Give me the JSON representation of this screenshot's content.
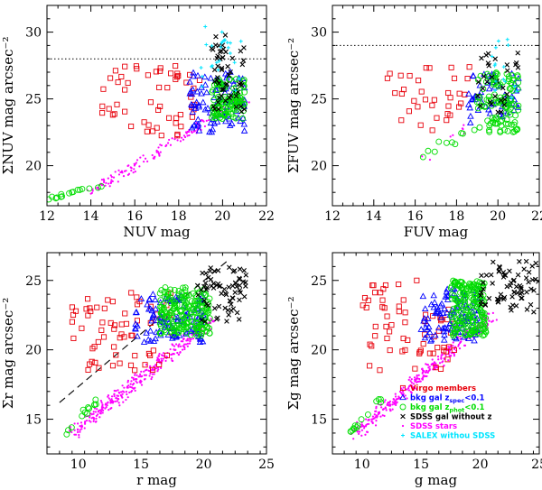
{
  "chart_data": [
    {
      "id": "nuv",
      "type": "scatter",
      "xlabel": "NUV mag",
      "ylabel": "ΣNUV mag arcsec⁻²",
      "xlim": [
        12,
        22
      ],
      "ylim": [
        17,
        32
      ],
      "xticks": [
        12,
        14,
        16,
        18,
        20,
        22
      ],
      "yticks": [
        20,
        25,
        30
      ],
      "hline": 28,
      "clusters": [
        {
          "series": "Virgo members",
          "x": [
            14.5,
            19.0
          ],
          "y": [
            22.0,
            27.5
          ],
          "n": 55
        },
        {
          "series": "bkg gal zspec<0.1",
          "x": [
            18.5,
            21.0
          ],
          "y": [
            22.5,
            27.0
          ],
          "n": 90
        },
        {
          "series": "bkg gal zphot<0.1",
          "x": [
            19.5,
            21.0
          ],
          "y": [
            23.5,
            26.5
          ],
          "n": 110
        },
        {
          "series": "SDSS gal without z",
          "x": [
            19.5,
            21.0
          ],
          "y": [
            24.0,
            30.0
          ],
          "n": 55
        },
        {
          "series": "SALEX withou SDSS",
          "x": [
            19.0,
            21.0
          ],
          "y": [
            25.5,
            31.0
          ],
          "n": 25
        }
      ],
      "lines": [
        {
          "series": "SDSS stars",
          "from": [
            14.0,
            18.0
          ],
          "to": [
            21.0,
            25.0
          ],
          "spread": 0.5,
          "n": 160
        },
        {
          "series": "bkg gal zphot<0.1",
          "from": [
            12.0,
            17.5
          ],
          "to": [
            14.5,
            18.6
          ],
          "spread": 0.3,
          "n": 16
        }
      ]
    },
    {
      "id": "fuv",
      "type": "scatter",
      "xlabel": "FUV mag",
      "ylabel": "ΣFUV mag arcsec⁻²",
      "xlim": [
        12,
        22
      ],
      "ylim": [
        17,
        32
      ],
      "xticks": [
        12,
        14,
        16,
        18,
        20,
        22
      ],
      "yticks": [
        20,
        25,
        30
      ],
      "hline": 29,
      "clusters": [
        {
          "series": "Virgo members",
          "x": [
            14.5,
            19.0
          ],
          "y": [
            22.5,
            27.5
          ],
          "n": 35
        },
        {
          "series": "bkg gal zspec<0.1",
          "x": [
            18.5,
            21.0
          ],
          "y": [
            23.0,
            27.0
          ],
          "n": 55
        },
        {
          "series": "bkg gal zphot<0.1",
          "x": [
            19.0,
            21.0
          ],
          "y": [
            22.5,
            27.0
          ],
          "n": 110
        },
        {
          "series": "SDSS gal without z",
          "x": [
            19.0,
            21.0
          ],
          "y": [
            24.0,
            28.5
          ],
          "n": 30
        },
        {
          "series": "SALEX withou SDSS",
          "x": [
            19.5,
            21.0
          ],
          "y": [
            25.0,
            30.0
          ],
          "n": 15
        }
      ],
      "lines": [
        {
          "series": "bkg gal zphot<0.1",
          "from": [
            16.0,
            20.5
          ],
          "to": [
            19.0,
            23.0
          ],
          "spread": 0.6,
          "n": 10
        },
        {
          "series": "SDSS stars",
          "from": [
            16.5,
            20.5
          ],
          "to": [
            18.5,
            23.0
          ],
          "spread": 0.6,
          "n": 8
        }
      ]
    },
    {
      "id": "r",
      "type": "scatter",
      "xlabel": "r mag",
      "ylabel": "Σr mag arcsec⁻²",
      "xlim": [
        7.5,
        25
      ],
      "ylim": [
        12.5,
        27
      ],
      "xticks": [
        10,
        15,
        20,
        25
      ],
      "yticks": [
        15,
        20,
        25
      ],
      "dashed": {
        "from": [
          8.5,
          16.2
        ],
        "to": [
          22.0,
          26.5
        ]
      },
      "clusters": [
        {
          "series": "Virgo members",
          "x": [
            9.5,
            17.5
          ],
          "y": [
            18.5,
            24.2
          ],
          "n": 65
        },
        {
          "series": "bkg gal zspec<0.1",
          "x": [
            14.5,
            20.0
          ],
          "y": [
            20.5,
            24.0
          ],
          "n": 110
        },
        {
          "series": "bkg gal zphot<0.1",
          "x": [
            16.5,
            20.5
          ],
          "y": [
            21.0,
            24.5
          ],
          "n": 190
        },
        {
          "series": "SDSS gal without z",
          "x": [
            19.5,
            23.5
          ],
          "y": [
            22.0,
            26.0
          ],
          "n": 70
        }
      ],
      "lines": [
        {
          "series": "SDSS stars",
          "from": [
            9.5,
            14.0
          ],
          "to": [
            20.5,
            22.0
          ],
          "spread": 0.9,
          "n": 330
        },
        {
          "series": "bkg gal zphot<0.1",
          "from": [
            9.0,
            14.0
          ],
          "to": [
            11.5,
            16.5
          ],
          "spread": 0.4,
          "n": 14
        }
      ]
    },
    {
      "id": "g",
      "type": "scatter",
      "xlabel": "g mag",
      "ylabel": "Σg mag arcsec⁻²",
      "xlim": [
        7.5,
        25
      ],
      "ylim": [
        12.5,
        27
      ],
      "xticks": [
        10,
        15,
        20,
        25
      ],
      "yticks": [
        15,
        20,
        25
      ],
      "clusters": [
        {
          "series": "Virgo members",
          "x": [
            10.0,
            18.0
          ],
          "y": [
            18.5,
            25.0
          ],
          "n": 65
        },
        {
          "series": "bkg gal zspec<0.1",
          "x": [
            15.0,
            20.0
          ],
          "y": [
            20.5,
            24.5
          ],
          "n": 110
        },
        {
          "series": "bkg gal zphot<0.1",
          "x": [
            17.5,
            20.5
          ],
          "y": [
            21.0,
            25.0
          ],
          "n": 190
        },
        {
          "series": "SDSS gal without z",
          "x": [
            20.0,
            25.0
          ],
          "y": [
            22.5,
            26.5
          ],
          "n": 70
        }
      ],
      "lines": [
        {
          "series": "SDSS stars",
          "from": [
            9.5,
            14.0
          ],
          "to": [
            21.0,
            22.5
          ],
          "spread": 0.9,
          "n": 330
        },
        {
          "series": "bkg gal zphot<0.1",
          "from": [
            9.0,
            14.0
          ],
          "to": [
            11.5,
            16.5
          ],
          "spread": 0.4,
          "n": 14
        }
      ]
    }
  ],
  "legend": {
    "panel": "g",
    "placement": "bottom-right",
    "entries": [
      {
        "series": "Virgo members",
        "symbol": "square",
        "color": "#e8000b",
        "text": "Virgo members",
        "sub": "",
        "tail": ""
      },
      {
        "series": "bkg gal zspec<0.1",
        "symbol": "triangle",
        "color": "#0000ff",
        "text": "bkg gal z",
        "sub": "spec",
        "tail": "<0.1"
      },
      {
        "series": "bkg gal zphot<0.1",
        "symbol": "circle",
        "color": "#00dd00",
        "text": "bkg gal z",
        "sub": "phot",
        "tail": "<0.1"
      },
      {
        "series": "SDSS gal without z",
        "symbol": "cross",
        "color": "#000000",
        "text": "SDSS gal without z",
        "sub": "",
        "tail": ""
      },
      {
        "series": "SDSS stars",
        "symbol": "dot",
        "color": "#ff00ff",
        "text": "SDSS stars",
        "sub": "",
        "tail": ""
      },
      {
        "series": "SALEX withou SDSS",
        "symbol": "star",
        "color": "#00e5ff",
        "text": "SALEX withou SDSS",
        "sub": "",
        "tail": ""
      }
    ]
  }
}
